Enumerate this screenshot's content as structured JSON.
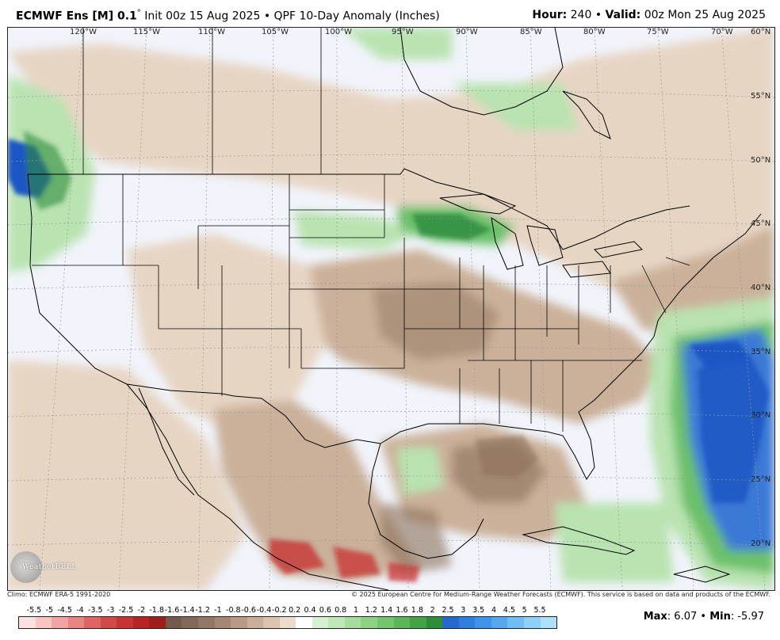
{
  "header": {
    "model": "ECMWF Ens [M] 0.1",
    "degree_symbol": "°",
    "init": " Init 00z 15 Aug 2025 • QPF 10-Day Anomaly (Inches)",
    "hour_label": "Hour:",
    "hour_value": " 240 • ",
    "valid_label": "Valid:",
    "valid_value": " 00z Mon 25 Aug 2025"
  },
  "map": {
    "longitude_labels": [
      "120°W",
      "115°W",
      "110°W",
      "105°W",
      "100°W",
      "95°W",
      "90°W",
      "85°W",
      "80°W",
      "75°W",
      "70°W"
    ],
    "latitude_labels": [
      "60°N",
      "55°N",
      "50°N",
      "45°N",
      "40°N",
      "35°N",
      "30°N",
      "25°N",
      "20°N"
    ],
    "colors": {
      "background": "#f1f4fb",
      "dry_light": "#e7d5c4",
      "dry_mid": "#cbb19a",
      "dry_dark": "#8b6e58",
      "wet_light": "#b9e3b1",
      "wet_mid": "#6cc16a",
      "wet_dark": "#2b8a3e",
      "blue_mid": "#3b79d6",
      "blue_dark": "#1f56c4",
      "red": "#c62b2b"
    }
  },
  "credits": {
    "climo": "Climo: ECMWF ERA-5 1991-2020",
    "copyright": "© 2025 European Centre for Medium-Range Weather Forecasts (ECMWF). This service is based on data and products of the ECMWF."
  },
  "logo": {
    "text": "WeatherBELL"
  },
  "colorbar": {
    "labels": [
      "-5.5",
      "-5",
      "-4.5",
      "-4",
      "-3.5",
      "-3",
      "-2.5",
      "-2",
      "-1.8",
      "-1.6",
      "-1.4",
      "-1.2",
      "-1",
      "-0.8",
      "-0.6",
      "-0.4",
      "-0.2",
      "0.2",
      "0.4",
      "0.6",
      "0.8",
      "1",
      "1.2",
      "1.4",
      "1.6",
      "1.8",
      "2",
      "2.5",
      "3",
      "3.5",
      "4",
      "4.5",
      "5",
      "5.5"
    ],
    "colors": [
      "#fde0e0",
      "#f8c4c4",
      "#f2a4a4",
      "#ea8484",
      "#e06464",
      "#d44848",
      "#c83434",
      "#b82424",
      "#a31c1c",
      "#735a4c",
      "#826858",
      "#937766",
      "#a58774",
      "#b89a86",
      "#caae9a",
      "#dbc3b0",
      "#ecdccc",
      "#ffffff",
      "#d6f0d0",
      "#bfe7b7",
      "#a6dc9d",
      "#8dd185",
      "#74c56d",
      "#5ab657",
      "#44a246",
      "#2f8c39",
      "#2468d2",
      "#2f7ee0",
      "#3f93ea",
      "#55a8f0",
      "#70bdf4",
      "#8ed0f7",
      "#aee0f9"
    ]
  },
  "stats": {
    "max_label": "Max",
    "max_value": ": 6.07 • ",
    "min_label": "Min",
    "min_value": ": -5.97"
  }
}
